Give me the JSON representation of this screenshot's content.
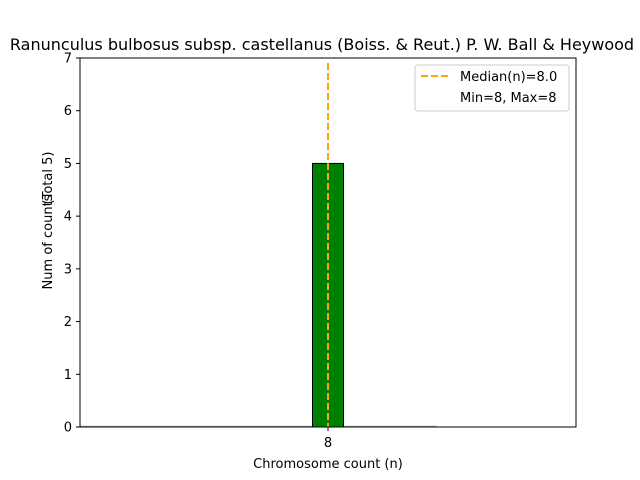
{
  "chart_data": {
    "type": "bar",
    "title": "Ranunculus bulbosus subsp. castellanus (Boiss. & Reut.) P. W. Ball & Heywood",
    "xlabel": "Chromosome count (n)",
    "ylabel": "Num of counts",
    "ylabel2": "(Total 5)",
    "xlim": [
      0,
      16
    ],
    "ylim": [
      0,
      7
    ],
    "x_ticks": [
      {
        "value": 8,
        "label": "8"
      }
    ],
    "y_ticks": [
      {
        "value": 0,
        "label": "0"
      },
      {
        "value": 1,
        "label": "1"
      },
      {
        "value": 2,
        "label": "2"
      },
      {
        "value": 3,
        "label": "3"
      },
      {
        "value": 4,
        "label": "4"
      },
      {
        "value": 5,
        "label": "5"
      },
      {
        "value": 6,
        "label": "6"
      },
      {
        "value": 7,
        "label": "7"
      }
    ],
    "bars": [
      {
        "x": 8,
        "width": 1,
        "value": 5
      }
    ],
    "empty_bins_range": [
      0,
      11.5
    ],
    "median": 8.0,
    "legend": {
      "placement": "top-right",
      "entries": [
        "Median(n)=8.0",
        "Min=8, Max=8"
      ]
    },
    "colors": {
      "bar": "#008000",
      "median": "#FFA500",
      "empty": "#aaaaaa"
    }
  }
}
